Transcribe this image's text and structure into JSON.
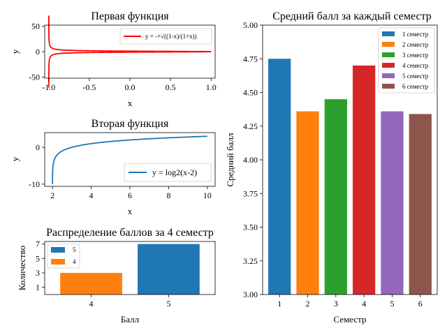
{
  "chart_data": [
    {
      "type": "line",
      "title": "Первая функция",
      "xlabel": "x",
      "ylabel": "y",
      "xlim": [
        -1.05,
        1.05
      ],
      "ylim": [
        -52,
        52
      ],
      "xticks": [
        -1.0,
        -0.5,
        0.0,
        0.5,
        1.0
      ],
      "xtick_labels": [
        "-1.0",
        "-0.5",
        "0.0",
        "0.5",
        "1.0"
      ],
      "yticks": [
        -50,
        0,
        50
      ],
      "ytick_labels": [
        "-50",
        "0",
        "50"
      ],
      "series": [
        {
          "name": "y = -+√((1-x)/(1+x))",
          "color": "#ff0000",
          "formula": "±sqrt((1-x)/(1+x))",
          "x_range": [
            -0.9996,
            1.0
          ]
        }
      ],
      "legend": "upper-right",
      "grid": false
    },
    {
      "type": "line",
      "title": "Вторая функция",
      "xlabel": "x",
      "ylabel": "y",
      "xlim": [
        1.6,
        10.4
      ],
      "ylim": [
        -10.6,
        4.0
      ],
      "xticks": [
        2,
        4,
        6,
        8,
        10
      ],
      "xtick_labels": [
        "2",
        "4",
        "6",
        "8",
        "10"
      ],
      "yticks": [
        -10,
        0
      ],
      "ytick_labels": [
        "-10",
        "0"
      ],
      "series": [
        {
          "name": "y = log2(x-2)",
          "color": "#1f77b4",
          "formula": "log2(x-2)",
          "x_range": [
            2.001,
            10
          ]
        }
      ],
      "legend": "lower-right",
      "grid": false
    },
    {
      "type": "bar",
      "title": "Распределение баллов за 4 семестр",
      "xlabel": "Балл",
      "ylabel": "Количество",
      "categories": [
        "4",
        "5"
      ],
      "values": [
        3,
        7
      ],
      "colors": [
        "#ff7f0e",
        "#1f77b4"
      ],
      "ylim": [
        0,
        7.35
      ],
      "yticks": [
        1,
        3,
        5,
        7
      ],
      "ytick_labels": [
        "1",
        "3",
        "5",
        "7"
      ],
      "legend_entries": [
        {
          "label": "5",
          "color": "#1f77b4"
        },
        {
          "label": "4",
          "color": "#ff7f0e"
        }
      ],
      "legend": "upper-left",
      "grid": false
    },
    {
      "type": "bar",
      "title": "Средний балл за каждый семестр",
      "xlabel": "Семестр",
      "ylabel": "Средний балл",
      "categories": [
        "1",
        "2",
        "3",
        "4",
        "5",
        "6"
      ],
      "values": [
        4.75,
        4.36,
        4.45,
        4.7,
        4.36,
        4.34
      ],
      "colors": [
        "#1f77b4",
        "#ff7f0e",
        "#2ca02c",
        "#d62728",
        "#9467bd",
        "#8c564b"
      ],
      "ylim": [
        3.0,
        5.0
      ],
      "yticks": [
        3.0,
        3.25,
        3.5,
        3.75,
        4.0,
        4.25,
        4.5,
        4.75,
        5.0
      ],
      "ytick_labels": [
        "3.00",
        "3.25",
        "3.50",
        "3.75",
        "4.00",
        "4.25",
        "4.50",
        "4.75",
        "5.00"
      ],
      "legend_entries": [
        {
          "label": "1 семестр",
          "color": "#1f77b4"
        },
        {
          "label": "2 семестр",
          "color": "#ff7f0e"
        },
        {
          "label": "3 семестр",
          "color": "#2ca02c"
        },
        {
          "label": "4 семестр",
          "color": "#d62728"
        },
        {
          "label": "5 семестр",
          "color": "#9467bd"
        },
        {
          "label": "6 семестр",
          "color": "#8c564b"
        }
      ],
      "legend": "upper-right",
      "grid": false
    }
  ]
}
